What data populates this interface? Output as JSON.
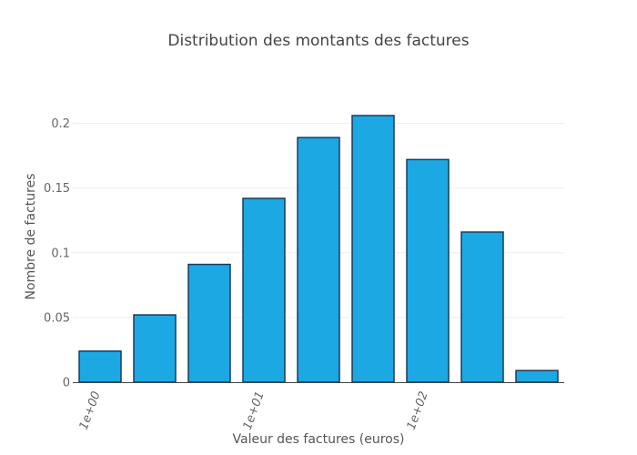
{
  "chart_data": {
    "type": "bar",
    "title": "Distribution des montants des factures",
    "xlabel": "Valeur des factures (euros)",
    "ylabel": "Nombre de factures",
    "x_scale": "log",
    "x_tick_labels": [
      "1e+00",
      "1e+01",
      "1e+02"
    ],
    "y_tick_labels": [
      "0",
      "0.05",
      "0.1",
      "0.15",
      "0.2"
    ],
    "y_ticks": [
      0,
      0.05,
      0.1,
      0.15,
      0.2
    ],
    "ylim": [
      0,
      0.232
    ],
    "bar_color": "#1ca8e3",
    "bar_edge_color": "#1b3a5c",
    "values": [
      0.024,
      0.052,
      0.091,
      0.142,
      0.189,
      0.206,
      0.172,
      0.116,
      0.009
    ],
    "grid": true
  }
}
